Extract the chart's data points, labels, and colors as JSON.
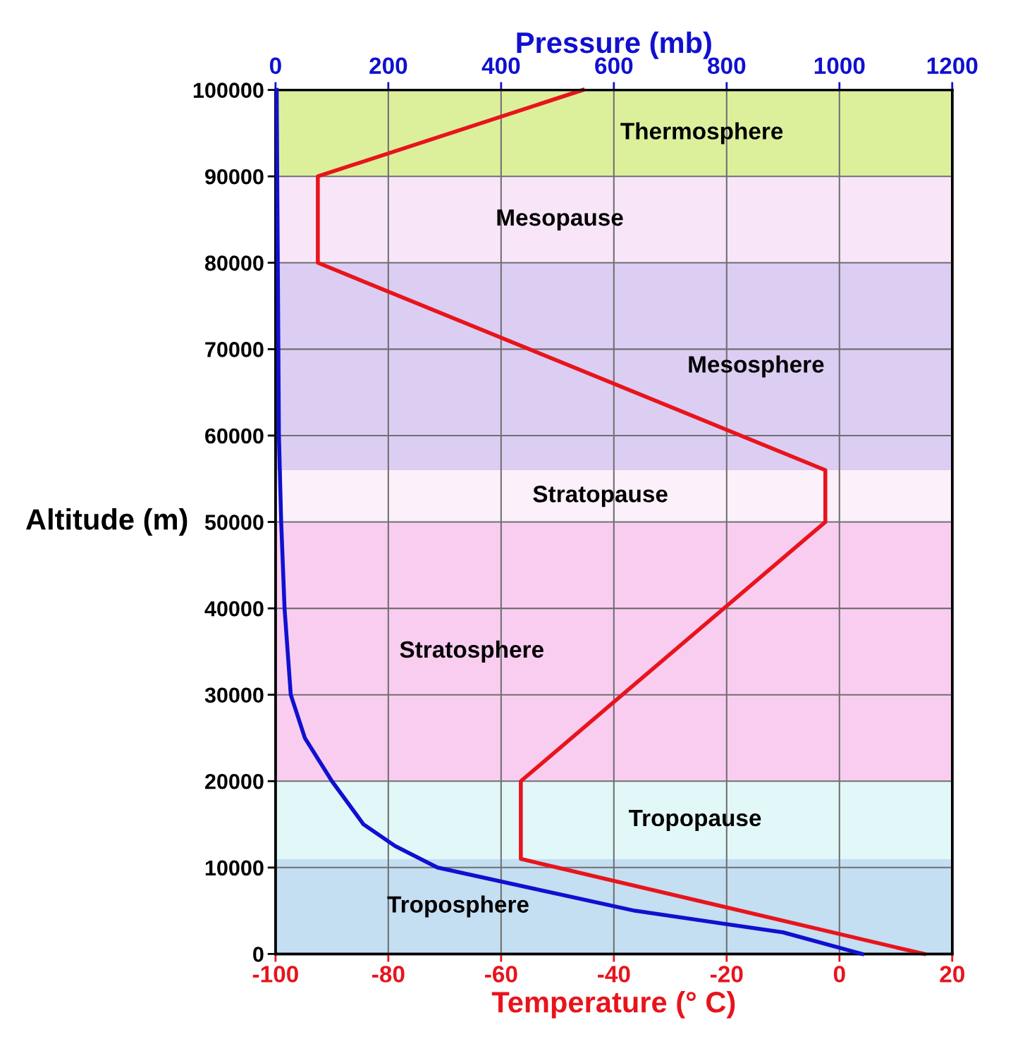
{
  "chart_data": {
    "type": "line",
    "xlabel": "Temperature (° C)",
    "x2label": "Pressure (mb)",
    "ylabel": "Altitude (m)",
    "xlim": [
      -100,
      20
    ],
    "xticks": [
      -100,
      -80,
      -60,
      -40,
      -20,
      0,
      20
    ],
    "x2lim": [
      0,
      1200
    ],
    "x2ticks": [
      0,
      200,
      400,
      600,
      800,
      1000,
      1200
    ],
    "ylim": [
      0,
      100000
    ],
    "yticks": [
      0,
      10000,
      20000,
      30000,
      40000,
      50000,
      60000,
      70000,
      80000,
      90000,
      100000
    ],
    "grid": true,
    "legend": false,
    "marker": "none",
    "line_style": "solid",
    "series": [
      {
        "color": "#e8141c",
        "x": [
          15,
          -56.5,
          -56.5,
          -2.5,
          -2.5,
          -92.5,
          -92.5,
          -45.5
        ],
        "values": [
          0,
          11000,
          20000,
          50000,
          56000,
          80000,
          90000,
          100000
        ]
      },
      {
        "color": "#1010d0",
        "axis": "x2",
        "x": [
          1040,
          900,
          637,
          462,
          287,
          212,
          156,
          100,
          52,
          27,
          16,
          10,
          6,
          4,
          2
        ],
        "values": [
          0,
          2500,
          5000,
          7500,
          10000,
          12500,
          15000,
          20000,
          25000,
          30000,
          40000,
          50000,
          60000,
          80000,
          100000
        ]
      }
    ],
    "bands": [
      {
        "axis": "y",
        "from": 0,
        "to": 11000,
        "label": "Troposphere",
        "color": "#c4def2"
      },
      {
        "axis": "y",
        "from": 11000,
        "to": 20000,
        "label": "Tropopause",
        "color": "#e2f8f8"
      },
      {
        "axis": "y",
        "from": 20000,
        "to": 50000,
        "label": "Stratosphere",
        "color": "#f8cdf0"
      },
      {
        "axis": "y",
        "from": 50000,
        "to": 56000,
        "label": "Stratopause",
        "color": "#fcf0fa"
      },
      {
        "axis": "y",
        "from": 56000,
        "to": 80000,
        "label": "Mesosphere",
        "color": "#dccdf2"
      },
      {
        "axis": "y",
        "from": 80000,
        "to": 90000,
        "label": "Mesopause",
        "color": "#f8e6f8"
      },
      {
        "axis": "y",
        "from": 90000,
        "to": 100000,
        "label": "Thermosphere",
        "color": "#dcf09c"
      }
    ]
  }
}
